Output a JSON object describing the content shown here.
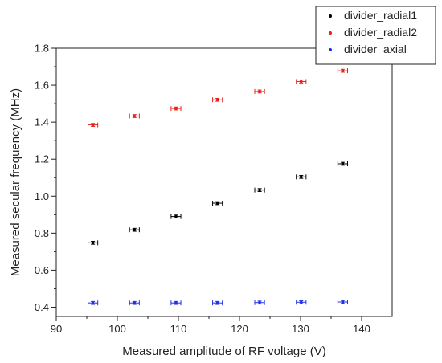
{
  "chart_data": {
    "type": "scatter",
    "xlabel": "Measured amplitude of RF voltage (V)",
    "ylabel": "Measured secular frequency (MHz)",
    "xlim": [
      90,
      145
    ],
    "ylim": [
      0.35,
      1.8
    ],
    "xticks": [
      90,
      100,
      110,
      120,
      130,
      140
    ],
    "xtick_labels": [
      "90",
      "100",
      "110",
      "120",
      "130",
      "140"
    ],
    "yticks": [
      0.4,
      0.6,
      0.8,
      1.0,
      1.2,
      1.4,
      1.6,
      1.8
    ],
    "ytick_labels": [
      "0.4",
      "0.6",
      "0.8",
      "1.0",
      "1.2",
      "1.4",
      "1.6",
      "1.8"
    ],
    "x_error": 0.8,
    "y_error": 0.008,
    "legend_position": "top-right",
    "grid": false,
    "series": [
      {
        "name": "divider_radial1",
        "color": "#000000",
        "x": [
          96,
          102.8,
          109.6,
          116.4,
          123.3,
          130.1,
          136.9
        ],
        "y": [
          0.748,
          0.818,
          0.89,
          0.962,
          1.033,
          1.104,
          1.175
        ]
      },
      {
        "name": "divider_radial2",
        "color": "#e8201c",
        "x": [
          96,
          102.8,
          109.6,
          116.4,
          123.3,
          130.1,
          136.9
        ],
        "y": [
          1.385,
          1.433,
          1.474,
          1.521,
          1.566,
          1.62,
          1.678
        ]
      },
      {
        "name": "divider_axial",
        "color": "#1f2fe8",
        "x": [
          96,
          102.8,
          109.6,
          116.4,
          123.3,
          130.1,
          136.9
        ],
        "y": [
          0.423,
          0.423,
          0.423,
          0.423,
          0.425,
          0.427,
          0.428
        ]
      }
    ]
  }
}
